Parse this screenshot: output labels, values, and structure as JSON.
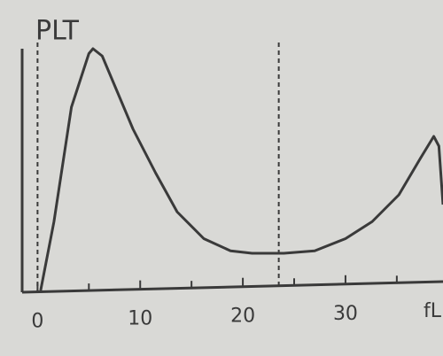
{
  "chart_data": {
    "type": "line",
    "title": "PLT",
    "x": [
      0.3,
      1.6,
      3.3,
      5.0,
      5.4,
      6.3,
      7.6,
      9.3,
      11.5,
      13.6,
      16.2,
      18.8,
      20.9,
      24.0,
      27.0,
      30.0,
      32.6,
      35.2,
      37.3,
      38.6,
      39.1,
      39.5
    ],
    "y": [
      0.7,
      29,
      76,
      98,
      100,
      97,
      84,
      67,
      49,
      33,
      22,
      17,
      16,
      16,
      17,
      22,
      29,
      40,
      55,
      64,
      60,
      36
    ],
    "color": "#3a3a3a",
    "xlim": [
      -1.5,
      39.5
    ],
    "ylim": [
      0,
      100
    ],
    "xticks": [
      0,
      10,
      20,
      30
    ],
    "xminor": [
      5,
      15,
      25,
      35
    ],
    "x_unit": "fL",
    "discriminators": [
      0,
      23.5
    ]
  }
}
